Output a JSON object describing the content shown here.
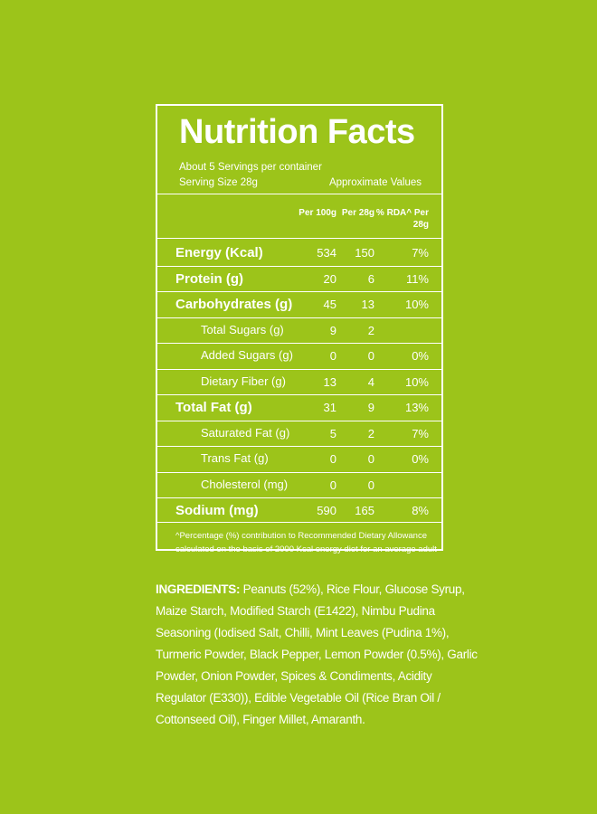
{
  "label": {
    "title": "Nutrition Facts",
    "servings": "About 5 Servings per container",
    "serving_size": "Serving Size 28g",
    "approximate": "Approximate Values",
    "columns": [
      "Per 100g",
      "Per 28g",
      "% RDA^ Per 28g"
    ],
    "rows": [
      {
        "name": "Energy (Kcal)",
        "bold": true,
        "cells": [
          "534",
          "150",
          "7%"
        ]
      },
      {
        "name": "Protein (g)",
        "bold": true,
        "cells": [
          "20",
          "6",
          "11%"
        ]
      },
      {
        "name": "Carbohydrates (g)",
        "bold": true,
        "cells": [
          "45",
          "13",
          "10%"
        ]
      },
      {
        "name": "Total Sugars (g)",
        "bold": false,
        "cells": [
          "9",
          "2",
          null
        ]
      },
      {
        "name": "Added Sugars (g)",
        "bold": false,
        "cells": [
          "0",
          "0",
          "0%"
        ]
      },
      {
        "name": "Dietary Fiber (g)",
        "bold": false,
        "cells": [
          "13",
          "4",
          "10%"
        ]
      },
      {
        "name": "Total Fat (g)",
        "bold": true,
        "cells": [
          "31",
          "9",
          "13%"
        ]
      },
      {
        "name": "Saturated Fat (g)",
        "bold": false,
        "cells": [
          "5",
          "2",
          "7%"
        ]
      },
      {
        "name": "Trans Fat (g)",
        "bold": false,
        "cells": [
          "0",
          "0",
          "0%"
        ]
      },
      {
        "name": "Cholesterol (mg)",
        "bold": false,
        "cells": [
          "0",
          "0",
          null
        ]
      },
      {
        "name": "Sodium (mg)",
        "bold": true,
        "cells": [
          "590",
          "165",
          "8%"
        ]
      }
    ],
    "footnote": "^Percentage (%) contribution to Recommended Dietary Allowance calculated on the basis of 2000 Kcal energy diet for an average adult"
  },
  "ingredients": {
    "heading": "INGREDIENTS:",
    "text": "Peanuts (52%), Rice Flour, Glucose Syrup, Maize Starch, Modified Starch (E1422), Nimbu Pudina Seasoning (Iodised Salt, Chilli, Mint Leaves (Pudina 1%), Turmeric Powder, Black Pepper, Lemon Powder (0.5%), Garlic Powder, Onion Powder, Spices & Condiments, Acidity Regulator (E330)), Edible Vegetable Oil (Rice Bran Oil / Cottonseed Oil), Finger Millet, Amaranth."
  }
}
